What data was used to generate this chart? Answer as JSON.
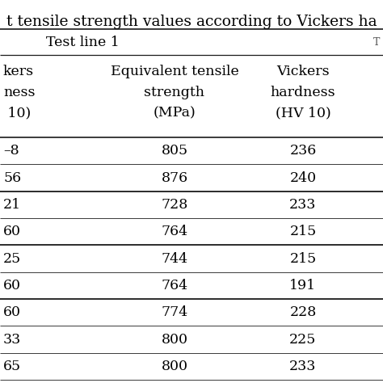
{
  "title": "t tensile strength values according to Vickers ha",
  "section_header": "Test line 1",
  "col1_hdr": [
    "kers",
    "ness",
    " 10)"
  ],
  "col2_hdr": [
    "Equivalent tensile",
    "strength",
    "(MPa)"
  ],
  "col3_hdr": [
    "Vickers",
    "hardness",
    "(HV 10)"
  ],
  "left_col": [
    "–8",
    "56",
    "21",
    "60",
    "25",
    "60",
    "60",
    "33",
    "65"
  ],
  "mid_col": [
    "805",
    "876",
    "728",
    "764",
    "744",
    "764",
    "774",
    "800",
    "800"
  ],
  "right_col": [
    "236",
    "240",
    "233",
    "215",
    "215",
    "191",
    "228",
    "225",
    "233"
  ],
  "thick_after_rows": [
    1,
    3,
    5
  ],
  "background_color": "#ffffff",
  "line_color": "#1a1a1a",
  "font_size": 12.5,
  "title_font_size": 13.5
}
